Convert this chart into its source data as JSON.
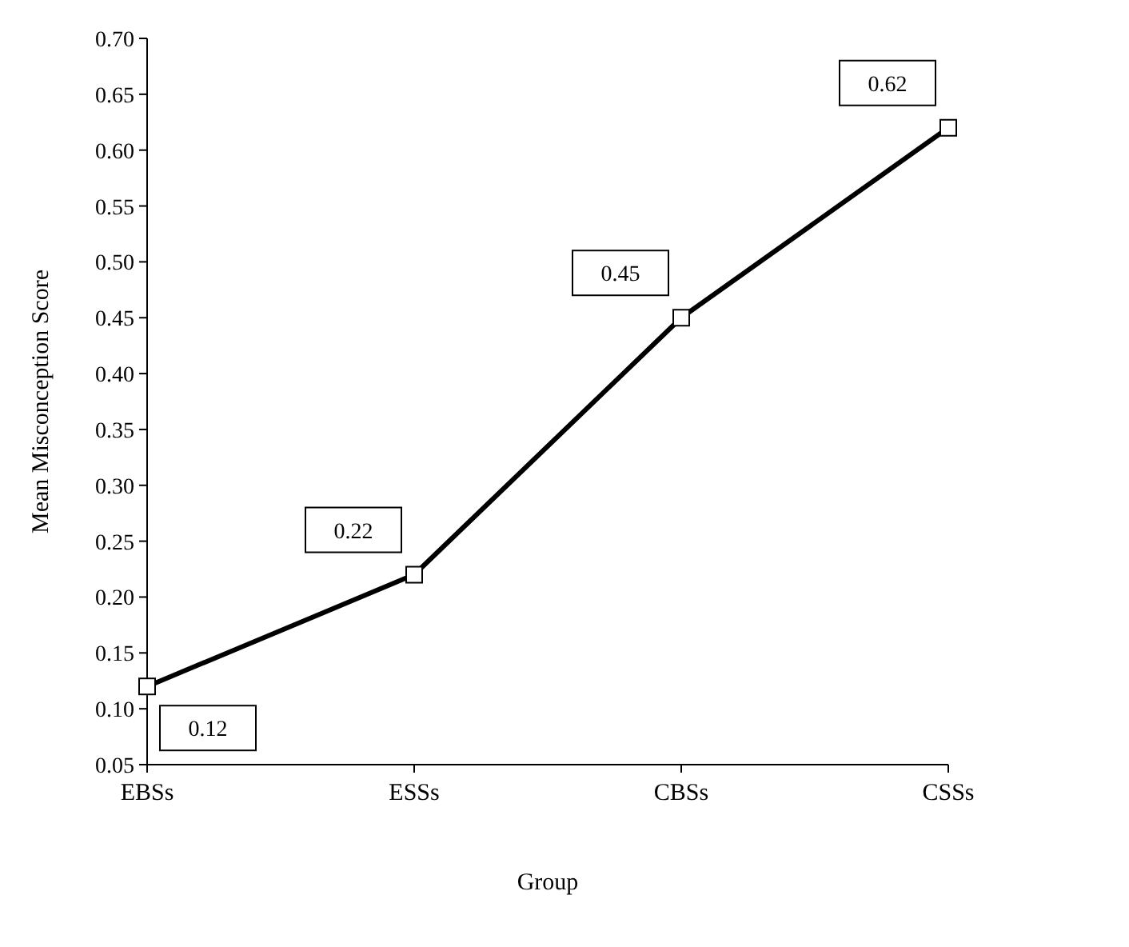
{
  "chart_data": {
    "type": "line",
    "xlabel": "Group",
    "ylabel": "Mean Misconception Score",
    "categories": [
      "EBSs",
      "ESSs",
      "CBSs",
      "CSSs"
    ],
    "series": [
      {
        "color": "#000000",
        "values": [
          0.12,
          0.22,
          0.45,
          0.62
        ]
      }
    ],
    "ylim": [
      0.05,
      0.7
    ],
    "yticks": [
      {
        "value": 0.05,
        "label": "0.05"
      },
      {
        "value": 0.1,
        "label": "0.10"
      },
      {
        "value": 0.15,
        "label": "0.15"
      },
      {
        "value": 0.2,
        "label": "0.20"
      },
      {
        "value": 0.25,
        "label": "0.25"
      },
      {
        "value": 0.3,
        "label": "0.30"
      },
      {
        "value": 0.35,
        "label": "0.35"
      },
      {
        "value": 0.4,
        "label": "0.40"
      },
      {
        "value": 0.45,
        "label": "0.45"
      },
      {
        "value": 0.5,
        "label": "0.50"
      },
      {
        "value": 0.55,
        "label": "0.55"
      },
      {
        "value": 0.6,
        "label": "0.60"
      },
      {
        "value": 0.65,
        "label": "0.65"
      },
      {
        "value": 0.7,
        "label": "0.70"
      }
    ],
    "marker": "square",
    "line_style": "solid",
    "data_labels": true
  }
}
